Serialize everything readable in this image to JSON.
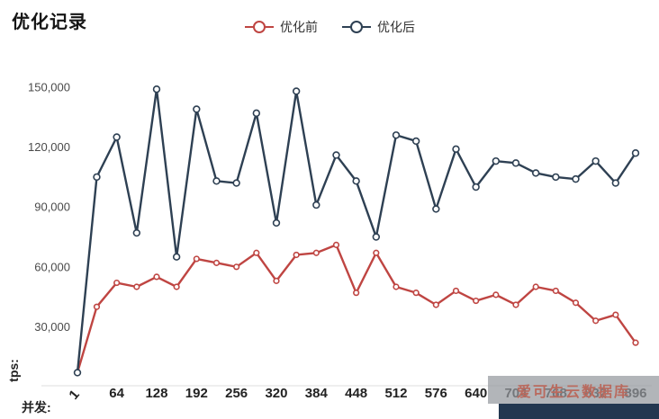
{
  "page": {
    "title": "优化记录"
  },
  "watermark": {
    "text": "爱可生云数据库",
    "box_color": "#94989e",
    "bar_color": "#223750"
  },
  "chart_data": {
    "type": "line",
    "title": "优化记录",
    "xlabel": "并发:",
    "ylabel": "tps:",
    "grid": false,
    "legend_position": "top",
    "x": [
      1,
      32,
      64,
      96,
      128,
      160,
      192,
      224,
      256,
      288,
      320,
      352,
      384,
      416,
      448,
      480,
      512,
      544,
      576,
      608,
      640,
      672,
      704,
      736,
      768,
      800,
      832,
      864,
      896
    ],
    "x_tick_labels": [
      "1",
      "64",
      "128",
      "192",
      "256",
      "320",
      "384",
      "448",
      "512",
      "576",
      "640",
      "704",
      "768",
      "832",
      "896"
    ],
    "y_ticks": [
      30000,
      60000,
      90000,
      120000,
      150000
    ],
    "y_tick_labels": [
      "30,000",
      "60,000",
      "90,000",
      "120,000",
      "150,000"
    ],
    "ylim": [
      0,
      160000
    ],
    "series": [
      {
        "name": "优化前",
        "color": "#bf4542",
        "values": [
          7000,
          40000,
          52000,
          50000,
          55000,
          50000,
          64000,
          62000,
          60000,
          67000,
          53000,
          66000,
          67000,
          71000,
          47000,
          67000,
          50000,
          47000,
          41000,
          48000,
          43000,
          46000,
          41000,
          50000,
          48000,
          42000,
          33000,
          36000,
          22000
        ]
      },
      {
        "name": "优化后",
        "color": "#2e4053",
        "values": [
          7000,
          105000,
          125000,
          77000,
          149000,
          65000,
          139000,
          103000,
          102000,
          137000,
          82000,
          148000,
          91000,
          116000,
          103000,
          75000,
          126000,
          123000,
          89000,
          119000,
          100000,
          113000,
          112000,
          107000,
          105000,
          104000,
          113000,
          102000,
          117000
        ]
      }
    ]
  }
}
